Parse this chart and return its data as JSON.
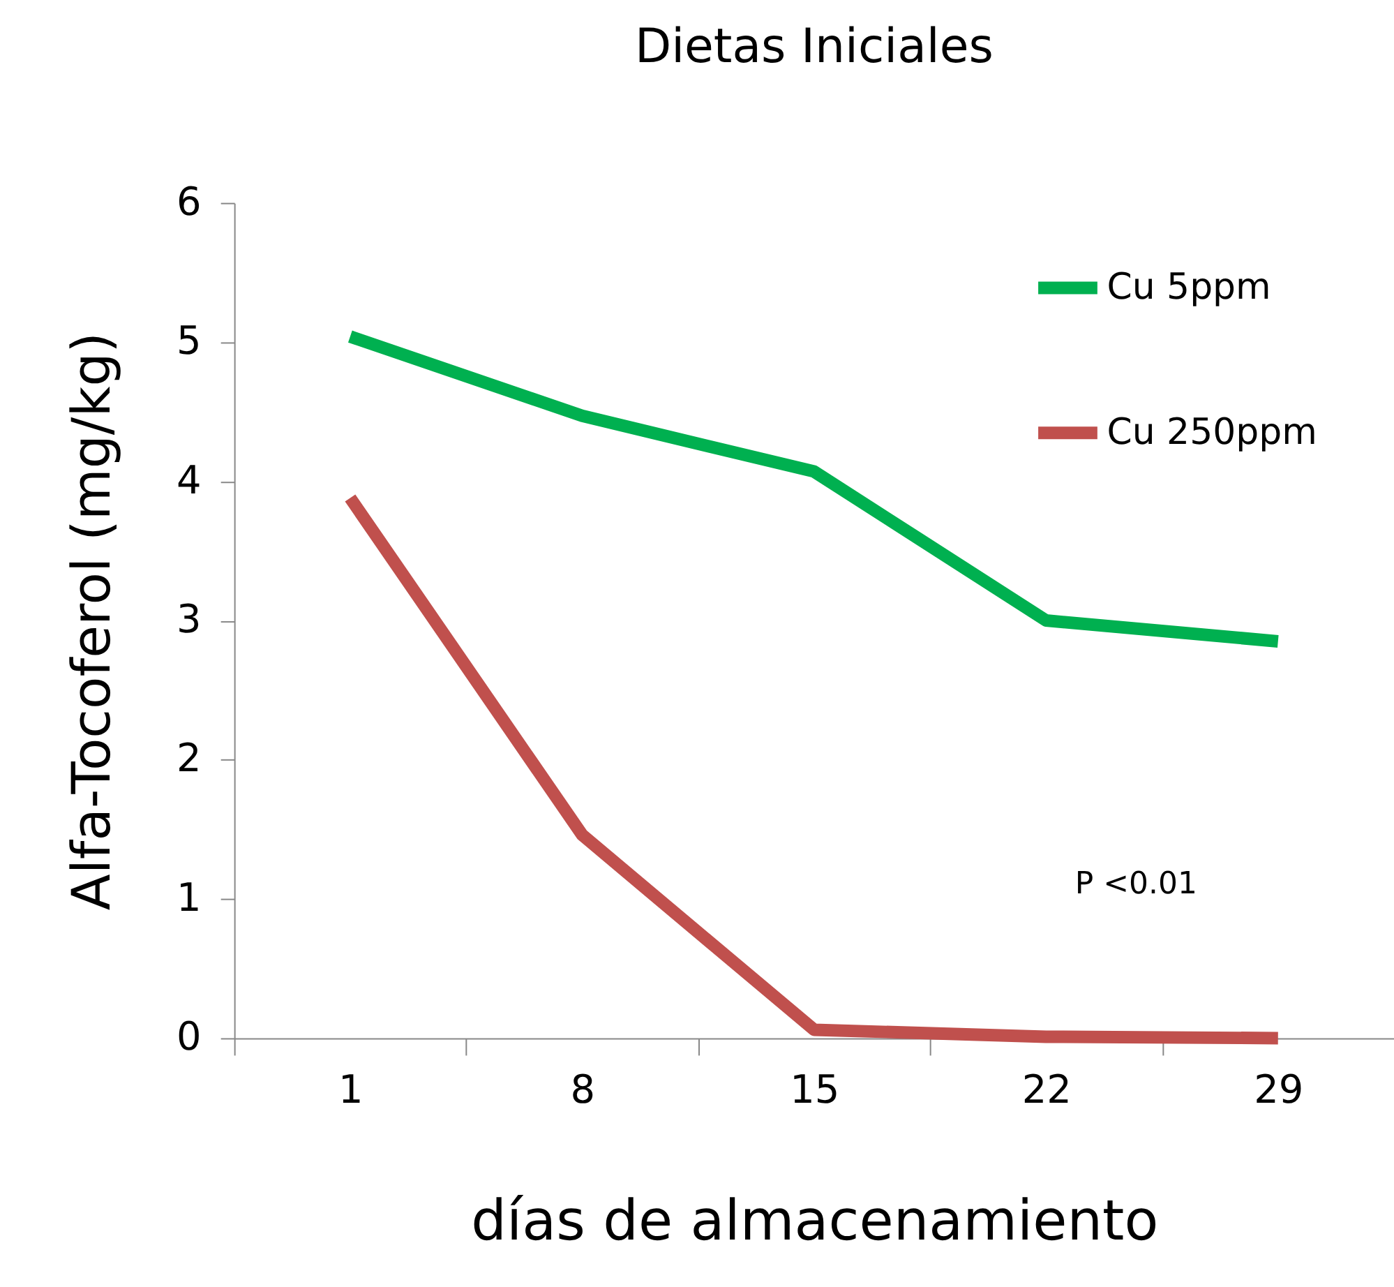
{
  "chart_data": {
    "type": "line",
    "title": "Dietas Iniciales",
    "xlabel": "días de almacenamiento",
    "ylabel": "Alfa-Tocoferol (mg/kg)",
    "categories": [
      "1",
      "8",
      "15",
      "22",
      "29"
    ],
    "series": [
      {
        "name": "Cu 5ppm",
        "color": "#00b050",
        "values": [
          5.04,
          4.47,
          4.07,
          3.0,
          2.85
        ]
      },
      {
        "name": "Cu 250ppm",
        "color": "#c0504d",
        "values": [
          3.88,
          1.46,
          0.06,
          0.01,
          0.0
        ]
      }
    ],
    "ylim": [
      0,
      6
    ],
    "yticks": [
      0,
      1,
      2,
      3,
      4,
      5,
      6
    ],
    "grid": false,
    "legend": "top right",
    "marker": "none",
    "line_style": "solid",
    "annotations": [
      "P <0.01"
    ]
  }
}
